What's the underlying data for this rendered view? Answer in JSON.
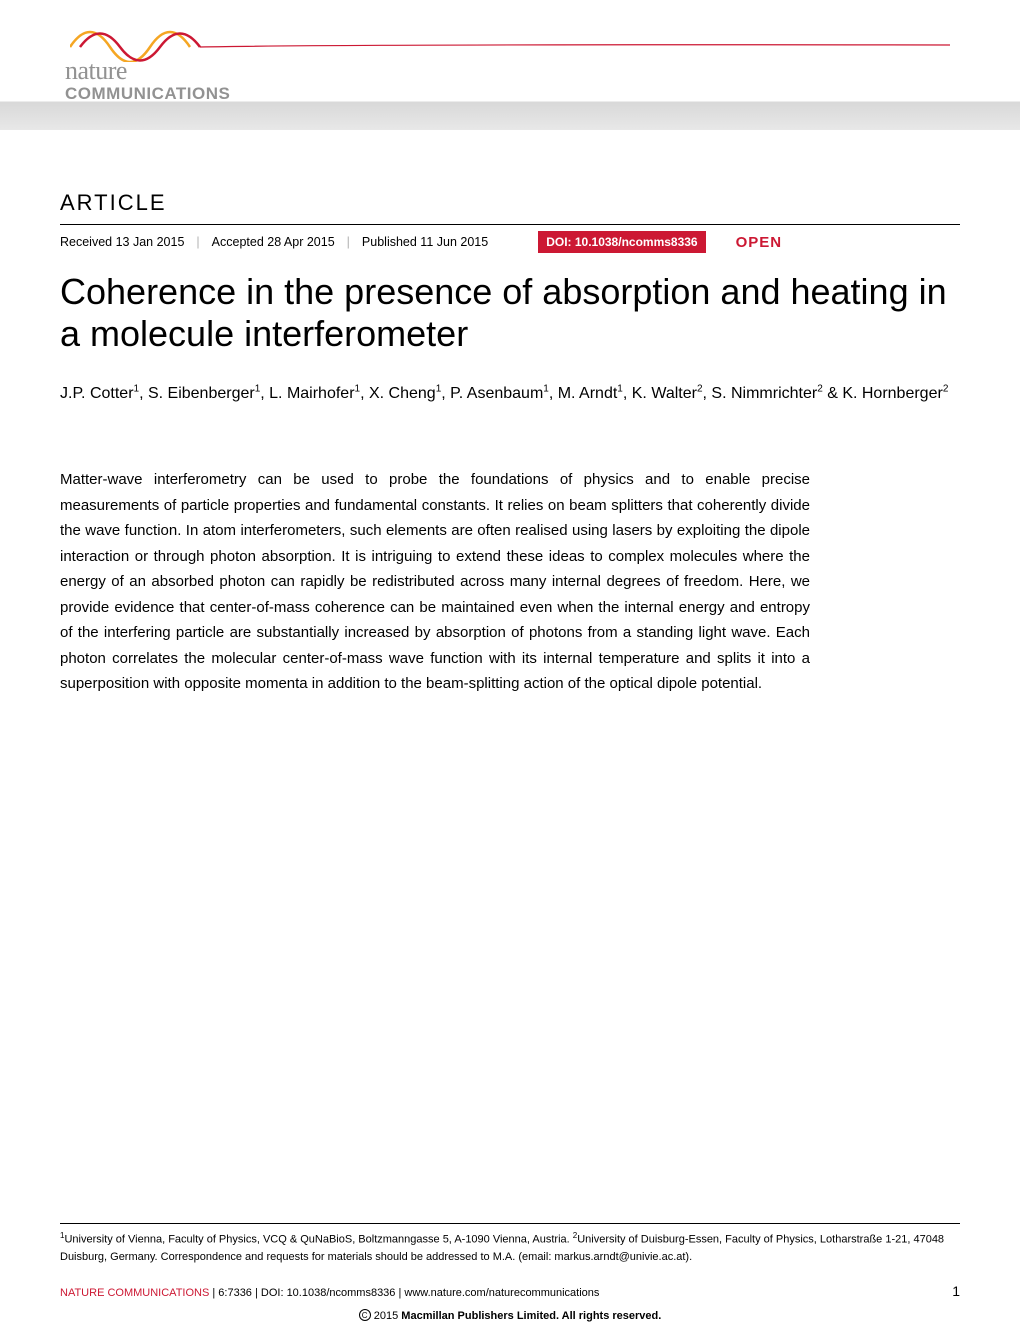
{
  "banner": {
    "logo_line1": "nature",
    "logo_line2": "COMMUNICATIONS",
    "wave_colors": [
      "#cc1833",
      "#f5a623",
      "#e8432e"
    ],
    "gradient_stop": "#d8d8d8"
  },
  "article": {
    "label": "ARTICLE",
    "received": "Received 13 Jan 2015",
    "accepted": "Accepted 28 Apr 2015",
    "published": "Published 11 Jun 2015",
    "doi_badge": "DOI: 10.1038/ncomms8336",
    "open_label": "OPEN",
    "doi_badge_bg": "#cc1833",
    "open_color": "#cc1833",
    "title": "Coherence in the presence of absorption and heating in a molecule interferometer"
  },
  "authors": {
    "list": [
      {
        "name": "J.P. Cotter",
        "aff": "1"
      },
      {
        "name": "S. Eibenberger",
        "aff": "1"
      },
      {
        "name": "L. Mairhofer",
        "aff": "1"
      },
      {
        "name": "X. Cheng",
        "aff": "1"
      },
      {
        "name": "P. Asenbaum",
        "aff": "1"
      },
      {
        "name": "M. Arndt",
        "aff": "1"
      },
      {
        "name": "K. Walter",
        "aff": "2"
      },
      {
        "name": "S. Nimmrichter",
        "aff": "2"
      },
      {
        "name": "K. Hornberger",
        "aff": "2"
      }
    ]
  },
  "abstract": "Matter-wave interferometry can be used to probe the foundations of physics and to enable precise measurements of particle properties and fundamental constants. It relies on beam splitters that coherently divide the wave function. In atom interferometers, such elements are often realised using lasers by exploiting the dipole interaction or through photon absorption. It is intriguing to extend these ideas to complex molecules where the energy of an absorbed photon can rapidly be redistributed across many internal degrees of freedom. Here, we provide evidence that center-of-mass coherence can be maintained even when the internal energy and entropy of the interfering particle are substantially increased by absorption of photons from a standing light wave. Each photon correlates the molecular center-of-mass wave function with its internal temperature and splits it into a superposition with opposite momenta in addition to the beam-splitting action of the optical dipole potential.",
  "affiliations": {
    "aff1_marker": "1",
    "aff1": "University of Vienna, Faculty of Physics, VCQ & QuNaBioS, Boltzmanngasse 5, A-1090 Vienna, Austria.",
    "aff2_marker": "2",
    "aff2": "University of Duisburg-Essen, Faculty of Physics, Lotharstraße 1-21, 47048 Duisburg, Germany.",
    "correspondence": "Correspondence and requests for materials should be addressed to M.A. (email: markus.arndt@univie.ac.at)."
  },
  "footer": {
    "journal": "NATURE COMMUNICATIONS",
    "citation": " | 6:7336 | DOI: 10.1038/ncomms8336 | www.nature.com/naturecommunications",
    "page": "1",
    "copyright_year": "2015",
    "copyright_text": "Macmillan Publishers Limited. All rights reserved."
  }
}
